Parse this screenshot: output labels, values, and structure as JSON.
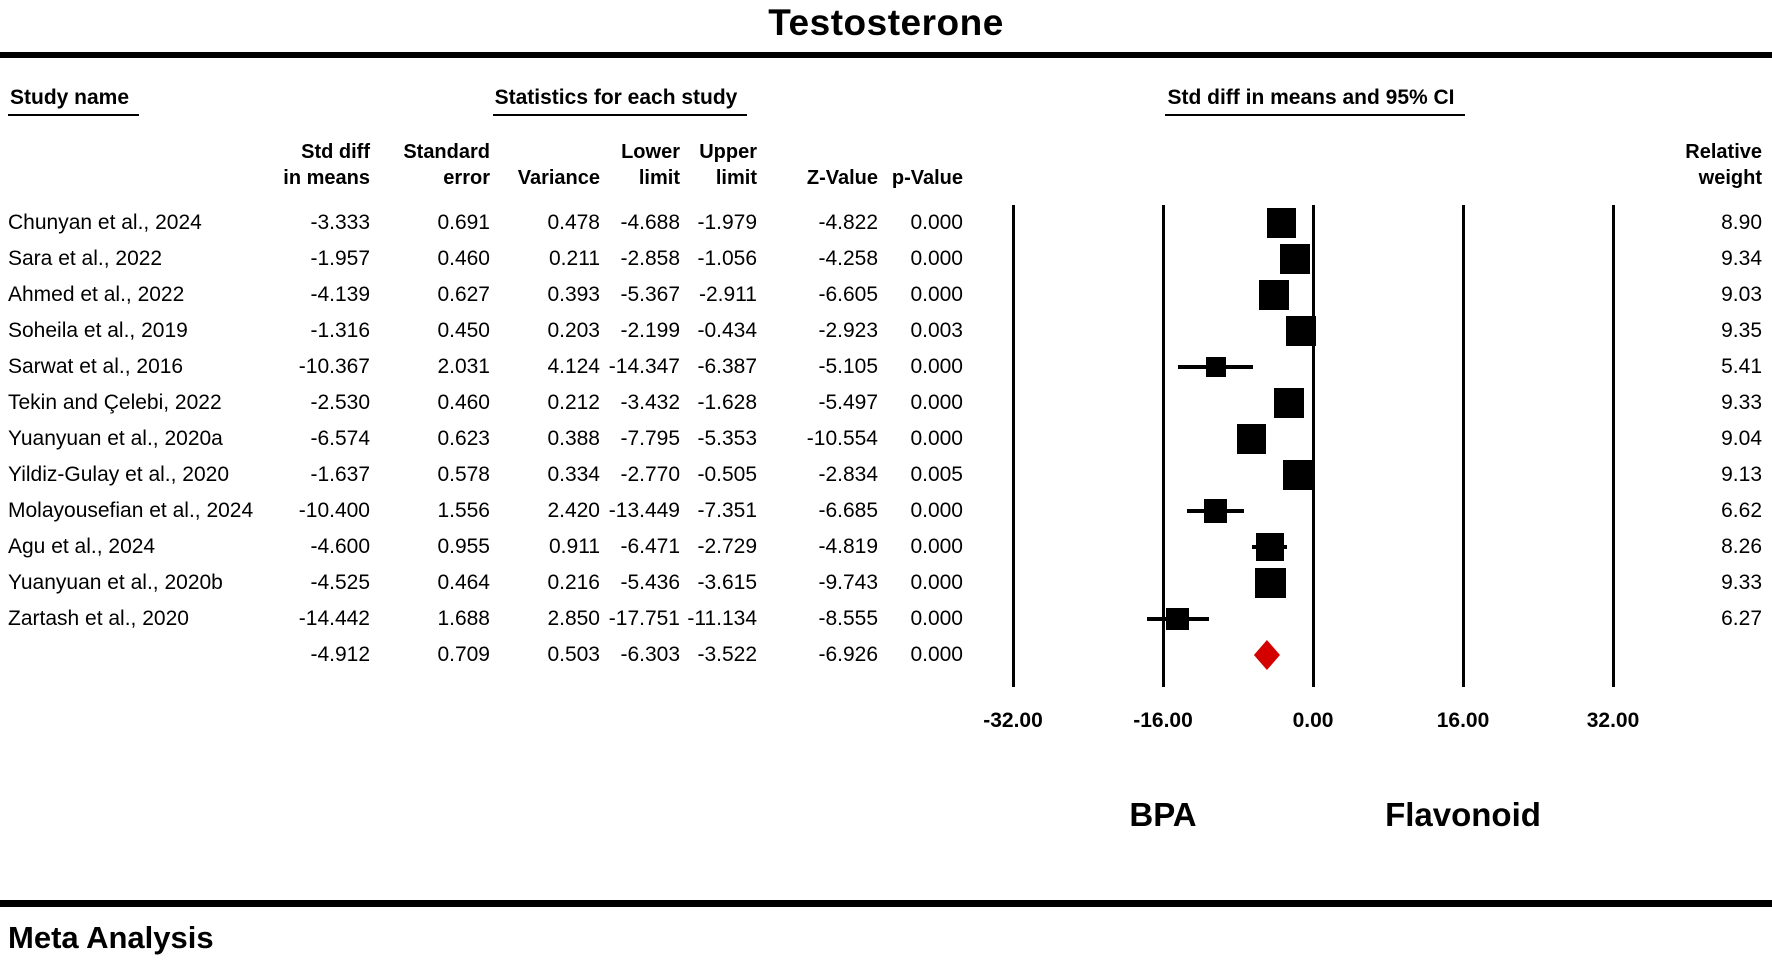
{
  "title": "Testosterone",
  "meta_label": "Meta Analysis",
  "headers": {
    "study": "Study name",
    "stats_group": "Statistics for each study",
    "ci_group": "Std diff in means and 95% CI",
    "columns": [
      {
        "l1": "Std diff",
        "l2": "in means"
      },
      {
        "l1": "Standard",
        "l2": "error"
      },
      {
        "l1": "",
        "l2": "Variance"
      },
      {
        "l1": "Lower",
        "l2": "limit"
      },
      {
        "l1": "Upper",
        "l2": "limit"
      },
      {
        "l1": "",
        "l2": "Z-Value"
      },
      {
        "l1": "",
        "l2": "p-Value"
      },
      {
        "l1": "Relative",
        "l2": "weight"
      }
    ]
  },
  "axis": {
    "ticks": [
      -32,
      -16,
      0,
      16,
      32
    ],
    "tick_labels": [
      "-32.00",
      "-16.00",
      "0.00",
      "16.00",
      "32.00"
    ],
    "group_left": "BPA",
    "group_right": "Flavonoid"
  },
  "colors": {
    "marker": "#000000",
    "diamond": "#d40000"
  },
  "chart_data": {
    "type": "forest",
    "title": "Testosterone",
    "x_axis_range": [
      -32,
      32
    ],
    "x_tick_step": 16,
    "favours_left": "BPA",
    "favours_right": "Flavonoid",
    "studies": [
      {
        "name": "Chunyan et al., 2024",
        "std_diff": -3.333,
        "std_err": 0.691,
        "variance": 0.478,
        "lower": -4.688,
        "upper": -1.979,
        "z": -4.822,
        "p": 0.0,
        "weight": 8.9
      },
      {
        "name": "Sara et al., 2022",
        "std_diff": -1.957,
        "std_err": 0.46,
        "variance": 0.211,
        "lower": -2.858,
        "upper": -1.056,
        "z": -4.258,
        "p": 0.0,
        "weight": 9.34
      },
      {
        "name": "Ahmed et al., 2022",
        "std_diff": -4.139,
        "std_err": 0.627,
        "variance": 0.393,
        "lower": -5.367,
        "upper": -2.911,
        "z": -6.605,
        "p": 0.0,
        "weight": 9.03
      },
      {
        "name": "Soheila et al., 2019",
        "std_diff": -1.316,
        "std_err": 0.45,
        "variance": 0.203,
        "lower": -2.199,
        "upper": -0.434,
        "z": -2.923,
        "p": 0.003,
        "weight": 9.35
      },
      {
        "name": "Sarwat et al., 2016",
        "std_diff": -10.367,
        "std_err": 2.031,
        "variance": 4.124,
        "lower": -14.347,
        "upper": -6.387,
        "z": -5.105,
        "p": 0.0,
        "weight": 5.41
      },
      {
        "name": "Tekin and Çelebi, 2022",
        "std_diff": -2.53,
        "std_err": 0.46,
        "variance": 0.212,
        "lower": -3.432,
        "upper": -1.628,
        "z": -5.497,
        "p": 0.0,
        "weight": 9.33
      },
      {
        "name": "Yuanyuan et al., 2020a",
        "std_diff": -6.574,
        "std_err": 0.623,
        "variance": 0.388,
        "lower": -7.795,
        "upper": -5.353,
        "z": -10.554,
        "p": 0.0,
        "weight": 9.04
      },
      {
        "name": "Yildiz-Gulay et al., 2020",
        "std_diff": -1.637,
        "std_err": 0.578,
        "variance": 0.334,
        "lower": -2.77,
        "upper": -0.505,
        "z": -2.834,
        "p": 0.005,
        "weight": 9.13
      },
      {
        "name": "Molayousefian et al., 2024",
        "std_diff": -10.4,
        "std_err": 1.556,
        "variance": 2.42,
        "lower": -13.449,
        "upper": -7.351,
        "z": -6.685,
        "p": 0.0,
        "weight": 6.62
      },
      {
        "name": "Agu et al., 2024",
        "std_diff": -4.6,
        "std_err": 0.955,
        "variance": 0.911,
        "lower": -6.471,
        "upper": -2.729,
        "z": -4.819,
        "p": 0.0,
        "weight": 8.26
      },
      {
        "name": "Yuanyuan et al., 2020b",
        "std_diff": -4.525,
        "std_err": 0.464,
        "variance": 0.216,
        "lower": -5.436,
        "upper": -3.615,
        "z": -9.743,
        "p": 0.0,
        "weight": 9.33
      },
      {
        "name": "Zartash et al., 2020",
        "std_diff": -14.442,
        "std_err": 1.688,
        "variance": 2.85,
        "lower": -17.751,
        "upper": -11.134,
        "z": -8.555,
        "p": 0.0,
        "weight": 6.27
      }
    ],
    "summary": {
      "name": "",
      "std_diff": -4.912,
      "std_err": 0.709,
      "variance": 0.503,
      "lower": -6.303,
      "upper": -3.522,
      "z": -6.926,
      "p": 0.0,
      "weight": null
    }
  }
}
